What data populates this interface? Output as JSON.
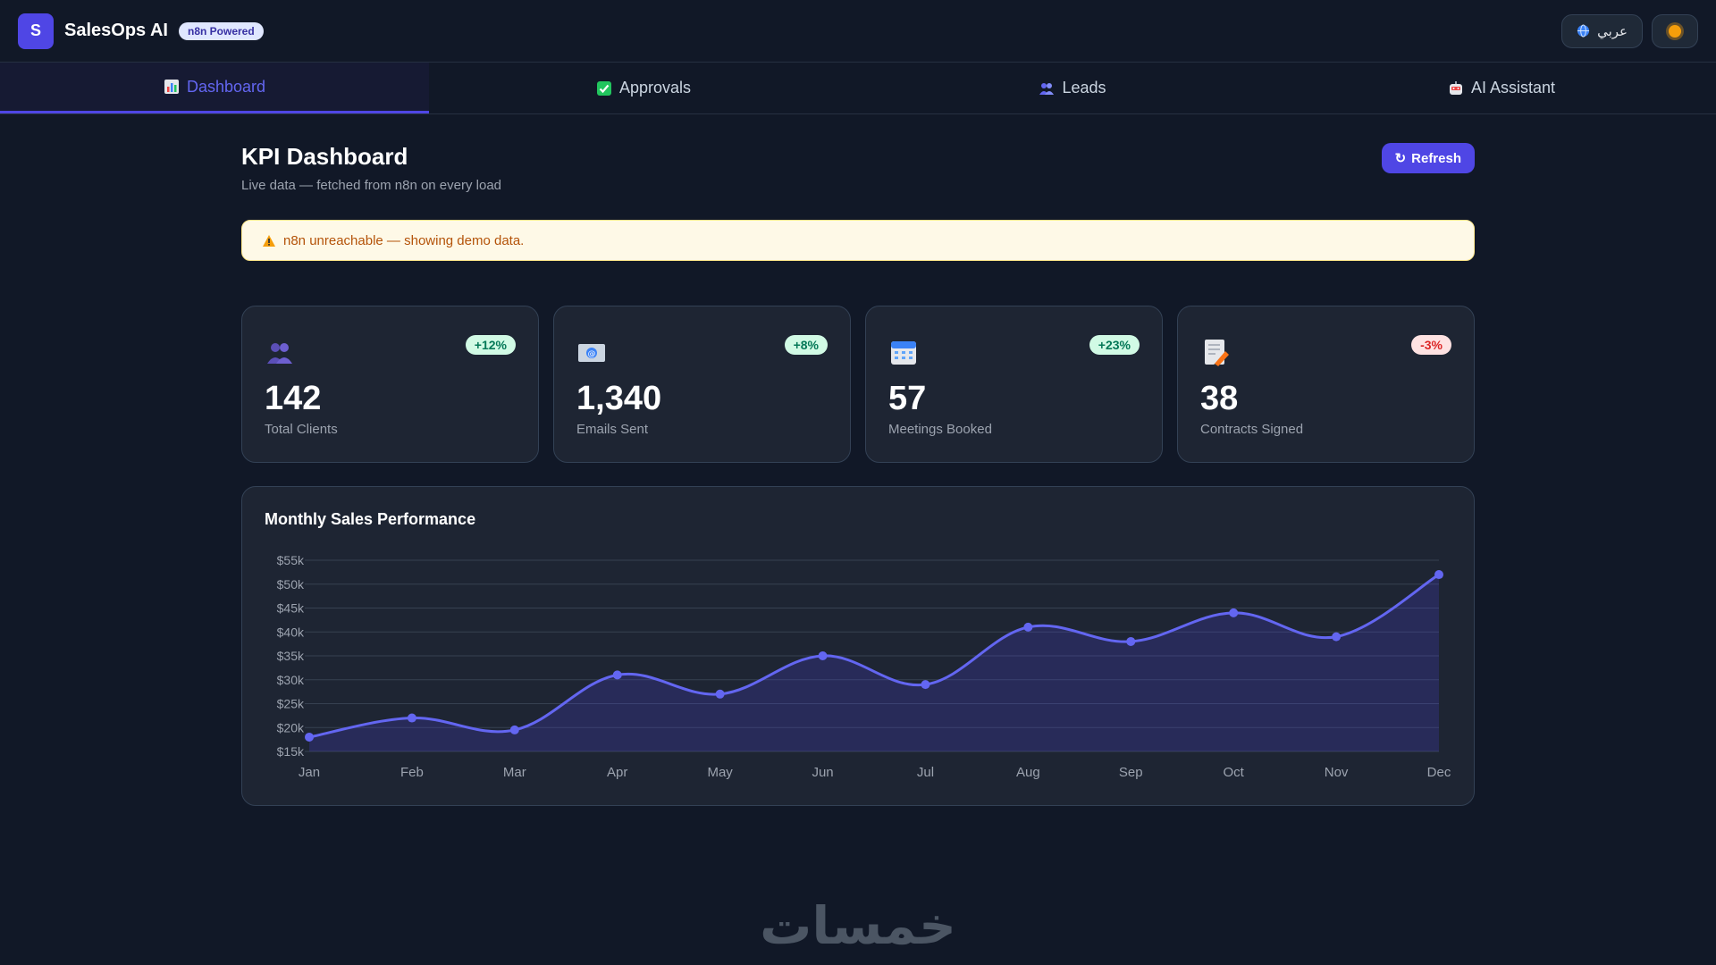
{
  "app": {
    "logo_letter": "S",
    "name": "SalesOps AI",
    "badge": "n8n Powered",
    "lang_button": "عربي"
  },
  "tabs": [
    {
      "label": "Dashboard",
      "icon": "bar-chart-icon",
      "active": true
    },
    {
      "label": "Approvals",
      "icon": "check-box-icon",
      "active": false
    },
    {
      "label": "Leads",
      "icon": "people-icon",
      "active": false
    },
    {
      "label": "AI Assistant",
      "icon": "robot-icon",
      "active": false
    }
  ],
  "page": {
    "title": "KPI Dashboard",
    "subtitle": "Live data — fetched from n8n on every load",
    "refresh_label": "Refresh"
  },
  "alert": {
    "text": "n8n unreachable — showing demo data."
  },
  "kpis": [
    {
      "value": "142",
      "label": "Total Clients",
      "change": "+12%",
      "trend": "up",
      "icon": "people-icon"
    },
    {
      "value": "1,340",
      "label": "Emails Sent",
      "change": "+8%",
      "trend": "up",
      "icon": "email-icon"
    },
    {
      "value": "57",
      "label": "Meetings Booked",
      "change": "+23%",
      "trend": "up",
      "icon": "calendar-icon"
    },
    {
      "value": "38",
      "label": "Contracts Signed",
      "change": "-3%",
      "trend": "down",
      "icon": "contract-icon"
    }
  ],
  "colors": {
    "accent": "#4f46e5",
    "line": "#6366f1",
    "background": "#111827",
    "card": "#1e2533"
  },
  "chart_data": {
    "type": "area",
    "title": "Monthly Sales Performance",
    "categories": [
      "Jan",
      "Feb",
      "Mar",
      "Apr",
      "May",
      "Jun",
      "Jul",
      "Aug",
      "Sep",
      "Oct",
      "Nov",
      "Dec"
    ],
    "values": [
      18000,
      22000,
      19500,
      31000,
      27000,
      35000,
      29000,
      41000,
      38000,
      44000,
      39000,
      52000
    ],
    "yticks": [
      "$55k",
      "$50k",
      "$45k",
      "$40k",
      "$35k",
      "$30k",
      "$25k",
      "$20k",
      "$15k"
    ],
    "ylim": [
      15000,
      55000
    ],
    "grid": true,
    "legend": "none"
  },
  "watermark": "خمسات"
}
